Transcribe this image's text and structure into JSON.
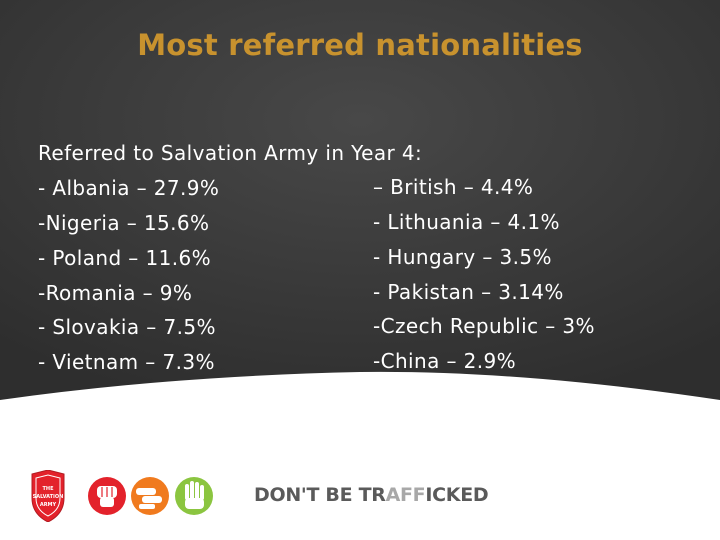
{
  "slide": {
    "title": "Most referred nationalities",
    "intro": "Referred to Salvation Army in Year 4:",
    "left_items": [
      "- Albania – 27.9%",
      "-Nigeria – 15.6%",
      "- Poland – 11.6%",
      "-Romania – 9%",
      "- Slovakia – 7.5%",
      "- Vietnam – 7.3%"
    ],
    "right_items": [
      "– British – 4.4%",
      "- Lithuania – 4.1%",
      "- Hungary – 3.5%",
      "- Pakistan – 3.14%",
      "-Czech Republic – 3%",
      "-China – 2.9%"
    ]
  },
  "footer": {
    "slogan_part1": "DON'T BE TR",
    "slogan_part2": "AFF",
    "slogan_part3": "ICKED",
    "shield_text": [
      "THE",
      "SALVATION",
      "ARMY"
    ]
  },
  "colors": {
    "background": "#3a3a3a",
    "title": "#c8922e",
    "text": "#ffffff",
    "red_circle": "#e3222b",
    "orange_circle": "#f07a1e",
    "green_circle": "#8bc540"
  },
  "icons": [
    "salvation-army-shield-icon",
    "fist-icon",
    "handshake-icon",
    "open-hand-icon"
  ]
}
